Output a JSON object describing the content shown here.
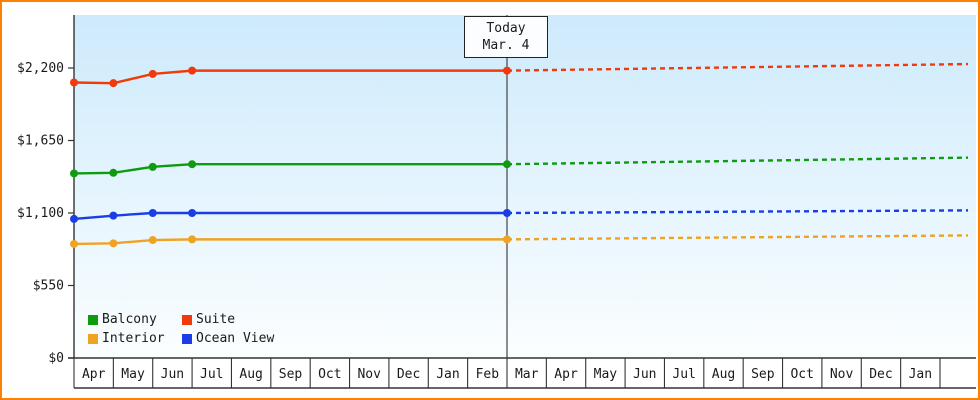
{
  "window": {
    "border_color": "#ff8000"
  },
  "colors": {
    "plot_bg_top": "#cdeafc",
    "plot_bg_bottom": "#fbfeff",
    "axis": "#333333",
    "today_line": "#444444",
    "text": "#1a1a1a"
  },
  "chart_data": {
    "type": "line",
    "title": "",
    "ylim": [
      0,
      2200
    ],
    "y_ticks": [
      {
        "value": 0,
        "label": "$0"
      },
      {
        "value": 550,
        "label": "$550"
      },
      {
        "value": 1100,
        "label": "$1,100"
      },
      {
        "value": 1650,
        "label": "$1,650"
      },
      {
        "value": 2200,
        "label": "$2,200"
      }
    ],
    "x_tick_labels": [
      "Apr",
      "May",
      "Jun",
      "Jul",
      "Aug",
      "Sep",
      "Oct",
      "Nov",
      "Dec",
      "Jan",
      "Feb",
      "Mar",
      "Apr",
      "May",
      "Jun",
      "Jul",
      "Aug",
      "Sep",
      "Oct",
      "Nov",
      "Dec",
      "Jan"
    ],
    "today": {
      "label": "Today",
      "date": "Mar. 4",
      "x_index": 11
    },
    "history_months": [
      "Apr",
      "May",
      "Jun",
      "Jul",
      "Aug",
      "Sep",
      "Oct",
      "Nov",
      "Dec",
      "Jan",
      "Feb",
      "Mar"
    ],
    "marker_indices": [
      0,
      1,
      2,
      3,
      11
    ],
    "series": [
      {
        "name": "Suite",
        "color": "#f13a0c",
        "history": [
          2090,
          2085,
          2155,
          2180,
          2180,
          2180,
          2180,
          2180,
          2180,
          2180,
          2180,
          2180
        ],
        "forecast_end": 2230
      },
      {
        "name": "Balcony",
        "color": "#0f9b0f",
        "history": [
          1400,
          1405,
          1450,
          1470,
          1470,
          1470,
          1470,
          1470,
          1470,
          1470,
          1470,
          1470
        ],
        "forecast_end": 1520
      },
      {
        "name": "Ocean View",
        "color": "#1b3de8",
        "history": [
          1055,
          1080,
          1100,
          1100,
          1100,
          1100,
          1100,
          1100,
          1100,
          1100,
          1100,
          1100
        ],
        "forecast_end": 1120
      },
      {
        "name": "Interior",
        "color": "#f0a322",
        "history": [
          865,
          870,
          895,
          900,
          900,
          900,
          900,
          900,
          900,
          900,
          900,
          900
        ],
        "forecast_end": 930
      }
    ],
    "legend": [
      {
        "label": "Balcony",
        "color": "#0f9b0f"
      },
      {
        "label": "Suite",
        "color": "#f13a0c"
      },
      {
        "label": "Interior",
        "color": "#f0a322"
      },
      {
        "label": "Ocean View",
        "color": "#1b3de8"
      }
    ]
  }
}
